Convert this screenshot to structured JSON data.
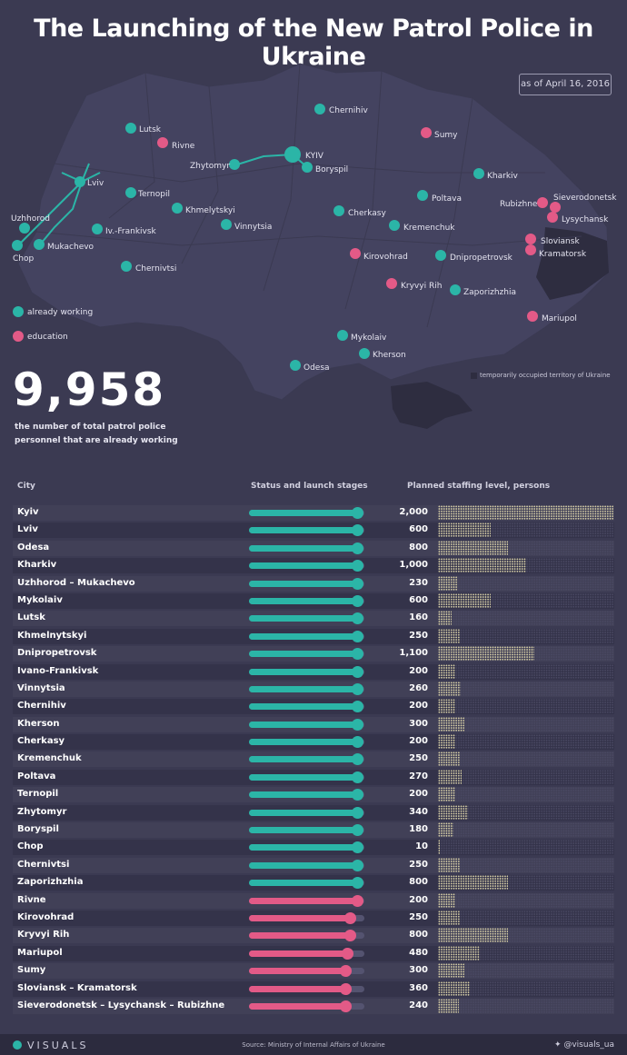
{
  "title": "The Launching of the New Patrol Police in Ukraine",
  "date_note": "as of April 16, 2016",
  "colors": {
    "working": "#2bb5a7",
    "education": "#e35a87",
    "background": "#3b3a52",
    "bar_fill": "#d9d1a7"
  },
  "legend": {
    "working": "already working",
    "education": "education",
    "occupied": "temporarily occupied territory of Ukraine"
  },
  "summary": {
    "number": "9,958",
    "desc_line1": "the number of total patrol police",
    "desc_line2": "personnel that are already working"
  },
  "map_labels": {
    "kyiv": "KYIV",
    "chernihiv": "Chernihiv",
    "lutsk": "Lutsk",
    "rivne": "Rivne",
    "sumy": "Sumy",
    "zhytomyr": "Zhytomyr",
    "boryspil": "Boryspil",
    "lviv": "Lviv",
    "kharkiv": "Kharkiv",
    "ternopil": "Ternopil",
    "khmelytskyi": "Khmelytskyi",
    "poltava": "Poltava",
    "sieverodonetsk": "Sieverodonetsk",
    "rubizhne": "Rubizhne",
    "uzhhorod": "Uzhhorod",
    "cherkasy": "Cherkasy",
    "lysychansk": "Lysychansk",
    "vinnytsia": "Vinnytsia",
    "kremenchuk": "Kremenchuk",
    "ivfrankivsk": "Iv.-Frankivsk",
    "sloviansk": "Sloviansk",
    "mukachevo": "Mukachevo",
    "kirovohrad": "Kirovohrad",
    "dnipropetrovsk": "Dnipropetrovsk",
    "kramatorsk": "Kramatorsk",
    "chop": "Chop",
    "chernivtsi": "Chernivtsi",
    "kryvyirih": "Kryvyi Rih",
    "zaporizhzhia": "Zaporizhzhia",
    "mariupol": "Mariupol",
    "mykolaiv": "Mykolaiv",
    "kherson": "Kherson",
    "odesa": "Odesa"
  },
  "table_headers": {
    "city": "City",
    "status": "Status and launch stages",
    "planned": "Planned staffing level, persons"
  },
  "chart_data": {
    "type": "table",
    "columns": [
      "City",
      "Status and launch stages",
      "Planned staffing level, persons"
    ],
    "rows": [
      {
        "city": "Kyiv",
        "status": "already working",
        "progress": 1.0,
        "planned": 2000,
        "planned_label": "2,000"
      },
      {
        "city": "Lviv",
        "status": "already working",
        "progress": 1.0,
        "planned": 600,
        "planned_label": "600"
      },
      {
        "city": "Odesa",
        "status": "already working",
        "progress": 1.0,
        "planned": 800,
        "planned_label": "800"
      },
      {
        "city": "Kharkiv",
        "status": "already working",
        "progress": 1.0,
        "planned": 1000,
        "planned_label": "1,000"
      },
      {
        "city": "Uzhhorod – Mukachevo",
        "status": "already working",
        "progress": 1.0,
        "planned": 230,
        "planned_label": "230"
      },
      {
        "city": "Mykolaiv",
        "status": "already working",
        "progress": 1.0,
        "planned": 600,
        "planned_label": "600"
      },
      {
        "city": "Lutsk",
        "status": "already working",
        "progress": 1.0,
        "planned": 160,
        "planned_label": "160"
      },
      {
        "city": "Khmelnytskyi",
        "status": "already working",
        "progress": 1.0,
        "planned": 250,
        "planned_label": "250"
      },
      {
        "city": "Dnipropetrovsk",
        "status": "already working",
        "progress": 1.0,
        "planned": 1100,
        "planned_label": "1,100"
      },
      {
        "city": "Ivano-Frankivsk",
        "status": "already working",
        "progress": 1.0,
        "planned": 200,
        "planned_label": "200"
      },
      {
        "city": "Vinnytsia",
        "status": "already working",
        "progress": 1.0,
        "planned": 260,
        "planned_label": "260"
      },
      {
        "city": "Chernihiv",
        "status": "already working",
        "progress": 1.0,
        "planned": 200,
        "planned_label": "200"
      },
      {
        "city": "Kherson",
        "status": "already working",
        "progress": 1.0,
        "planned": 300,
        "planned_label": "300"
      },
      {
        "city": "Cherkasy",
        "status": "already working",
        "progress": 1.0,
        "planned": 200,
        "planned_label": "200"
      },
      {
        "city": "Kremenchuk",
        "status": "already working",
        "progress": 1.0,
        "planned": 250,
        "planned_label": "250"
      },
      {
        "city": "Poltava",
        "status": "already working",
        "progress": 1.0,
        "planned": 270,
        "planned_label": "270"
      },
      {
        "city": "Ternopil",
        "status": "already working",
        "progress": 1.0,
        "planned": 200,
        "planned_label": "200"
      },
      {
        "city": "Zhytomyr",
        "status": "already working",
        "progress": 1.0,
        "planned": 340,
        "planned_label": "340"
      },
      {
        "city": "Boryspil",
        "status": "already working",
        "progress": 1.0,
        "planned": 180,
        "planned_label": "180"
      },
      {
        "city": "Chop",
        "status": "already working",
        "progress": 1.0,
        "planned": 10,
        "planned_label": "10"
      },
      {
        "city": "Chernivtsi",
        "status": "already working",
        "progress": 1.0,
        "planned": 250,
        "planned_label": "250"
      },
      {
        "city": "Zaporizhzhia",
        "status": "already working",
        "progress": 1.0,
        "planned": 800,
        "planned_label": "800"
      },
      {
        "city": "Rivne",
        "status": "education",
        "progress": 1.0,
        "planned": 200,
        "planned_label": "200"
      },
      {
        "city": "Kirovohrad",
        "status": "education",
        "progress": 0.93,
        "planned": 250,
        "planned_label": "250"
      },
      {
        "city": "Kryvyi Rih",
        "status": "education",
        "progress": 0.93,
        "planned": 800,
        "planned_label": "800"
      },
      {
        "city": "Mariupol",
        "status": "education",
        "progress": 0.91,
        "planned": 480,
        "planned_label": "480"
      },
      {
        "city": "Sumy",
        "status": "education",
        "progress": 0.89,
        "planned": 300,
        "planned_label": "300"
      },
      {
        "city": "Sloviansk – Kramatorsk",
        "status": "education",
        "progress": 0.89,
        "planned": 360,
        "planned_label": "360"
      },
      {
        "city": "Sieverodonetsk – Lysychansk – Rubizhne",
        "status": "education",
        "progress": 0.89,
        "planned": 240,
        "planned_label": "240"
      }
    ],
    "planned_max": 2000
  },
  "footer": {
    "logo": "VISUALS",
    "source": "Source: Ministry of Internal Affairs of Ukraine",
    "twitter": "@visuals_ua"
  }
}
